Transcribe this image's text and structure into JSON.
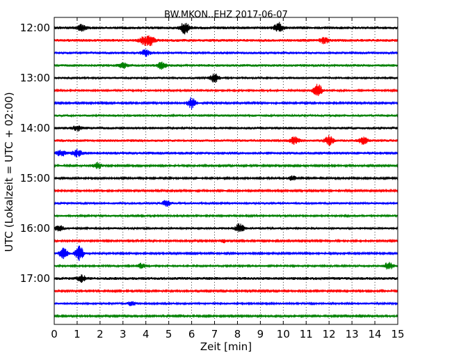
{
  "chart_data": {
    "type": "line",
    "title": "BW.MKON..EHZ 2017-06-07",
    "xlabel": "Zeit  [min]",
    "ylabel": "UTC (Lokalzeit = UTC + 02:00)",
    "xlim": [
      0,
      15
    ],
    "ylim_minutes": [
      0,
      360
    ],
    "x_tick_labels": [
      "0",
      "1",
      "2",
      "3",
      "4",
      "5",
      "6",
      "7",
      "8",
      "9",
      "10",
      "11",
      "12",
      "13",
      "14",
      "15"
    ],
    "y_tick_labels": [
      "12:00",
      "13:00",
      "14:00",
      "15:00",
      "16:00",
      "17:00"
    ],
    "grid": "vertical dotted lines at every minute",
    "trace_interval_minutes": 15,
    "trace_colors": [
      "#000000",
      "#ff0000",
      "#0000ff",
      "#008000"
    ],
    "traces": [
      {
        "start": "12:00",
        "amplitude": 1.0,
        "events": [
          {
            "minute": 5.7,
            "amp": 3.0
          },
          {
            "minute": 9.8,
            "amp": 2.6
          },
          {
            "minute": 1.2,
            "amp": 1.6
          }
        ]
      },
      {
        "start": "12:15",
        "amplitude": 1.0,
        "events": [
          {
            "minute": 4.2,
            "amp": 2.4
          },
          {
            "minute": 3.9,
            "amp": 2.0
          },
          {
            "minute": 11.8,
            "amp": 1.5
          }
        ]
      },
      {
        "start": "12:30",
        "amplitude": 0.9,
        "events": [
          {
            "minute": 4.0,
            "amp": 1.8
          }
        ]
      },
      {
        "start": "12:45",
        "amplitude": 0.9,
        "events": [
          {
            "minute": 4.7,
            "amp": 1.8
          },
          {
            "minute": 3.0,
            "amp": 1.4
          }
        ]
      },
      {
        "start": "13:00",
        "amplitude": 0.8,
        "events": [
          {
            "minute": 7.0,
            "amp": 2.2
          }
        ]
      },
      {
        "start": "13:15",
        "amplitude": 0.7,
        "events": [
          {
            "minute": 11.5,
            "amp": 4.0
          }
        ]
      },
      {
        "start": "13:30",
        "amplitude": 0.6,
        "events": [
          {
            "minute": 6.0,
            "amp": 3.2
          }
        ]
      },
      {
        "start": "13:45",
        "amplitude": 0.8,
        "events": []
      },
      {
        "start": "14:00",
        "amplitude": 0.9,
        "events": [
          {
            "minute": 1.0,
            "amp": 1.4
          }
        ]
      },
      {
        "start": "14:15",
        "amplitude": 0.9,
        "events": [
          {
            "minute": 12.0,
            "amp": 2.4
          },
          {
            "minute": 10.5,
            "amp": 2.0
          },
          {
            "minute": 13.5,
            "amp": 1.8
          }
        ]
      },
      {
        "start": "14:30",
        "amplitude": 1.0,
        "events": [
          {
            "minute": 1.0,
            "amp": 1.8
          },
          {
            "minute": 0.3,
            "amp": 1.5
          }
        ]
      },
      {
        "start": "14:45",
        "amplitude": 0.6,
        "events": [
          {
            "minute": 1.9,
            "amp": 1.8
          }
        ]
      },
      {
        "start": "15:00",
        "amplitude": 0.6,
        "events": [
          {
            "minute": 10.4,
            "amp": 1.2
          }
        ]
      },
      {
        "start": "15:15",
        "amplitude": 0.6,
        "events": []
      },
      {
        "start": "15:30",
        "amplitude": 0.8,
        "events": [
          {
            "minute": 4.9,
            "amp": 1.4
          }
        ]
      },
      {
        "start": "15:45",
        "amplitude": 0.7,
        "events": []
      },
      {
        "start": "16:00",
        "amplitude": 0.8,
        "events": [
          {
            "minute": 8.1,
            "amp": 2.6
          },
          {
            "minute": 0.2,
            "amp": 1.6
          }
        ]
      },
      {
        "start": "16:15",
        "amplitude": 0.6,
        "events": [
          {
            "minute": 7.4,
            "amp": 1.0
          }
        ]
      },
      {
        "start": "16:30",
        "amplitude": 0.6,
        "events": [
          {
            "minute": 1.1,
            "amp": 4.0
          },
          {
            "minute": 0.4,
            "amp": 2.8
          }
        ]
      },
      {
        "start": "16:45",
        "amplitude": 0.7,
        "events": [
          {
            "minute": 14.6,
            "amp": 2.0
          },
          {
            "minute": 3.8,
            "amp": 1.2
          }
        ]
      },
      {
        "start": "17:00",
        "amplitude": 1.0,
        "events": [
          {
            "minute": 1.2,
            "amp": 1.6
          }
        ]
      },
      {
        "start": "17:15",
        "amplitude": 0.6,
        "events": []
      },
      {
        "start": "17:30",
        "amplitude": 0.7,
        "events": [
          {
            "minute": 3.4,
            "amp": 1.1
          }
        ]
      },
      {
        "start": "17:45",
        "amplitude": 0.6,
        "events": []
      }
    ]
  }
}
